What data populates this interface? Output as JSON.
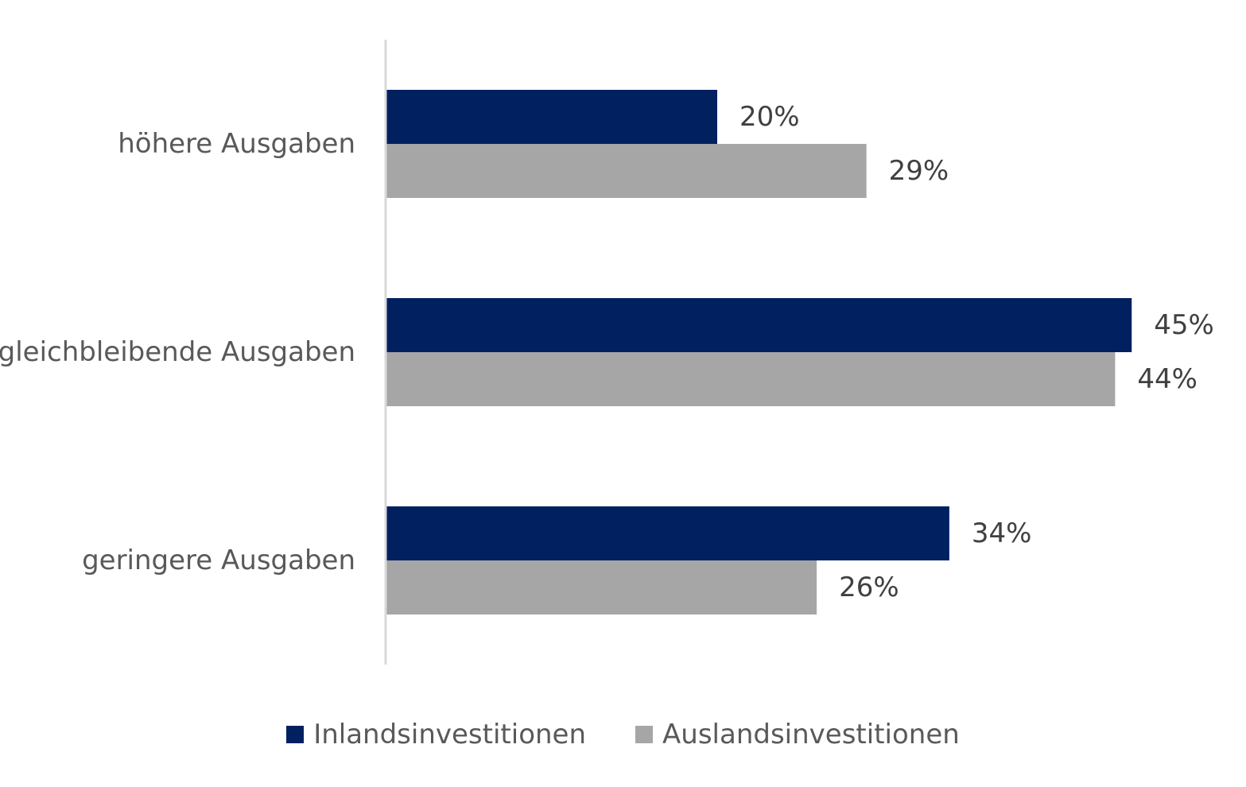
{
  "chart_data": {
    "type": "bar",
    "orientation": "horizontal",
    "categories": [
      "höhere Ausgaben",
      "gleichbleibende Ausgaben",
      "geringere Ausgaben"
    ],
    "series": [
      {
        "name": "Inlandsinvestitionen",
        "color": "#002060",
        "values": [
          20,
          45,
          34
        ],
        "labels": [
          "20%",
          "45%",
          "34%"
        ]
      },
      {
        "name": "Auslandsinvestitionen",
        "color": "#A6A6A6",
        "values": [
          29,
          44,
          26
        ],
        "labels": [
          "29%",
          "44%",
          "26%"
        ]
      }
    ],
    "value_unit": "%",
    "xlim": [
      0,
      50
    ],
    "grid": false,
    "legend_position": "bottom"
  }
}
